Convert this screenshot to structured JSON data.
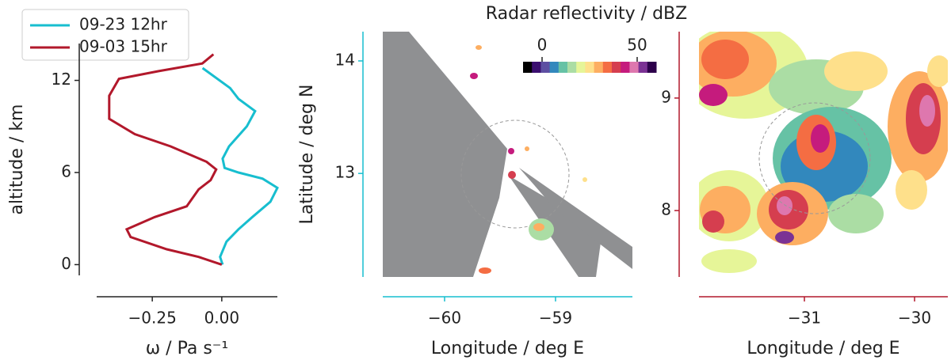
{
  "chart_data": [
    {
      "type": "line",
      "xlabel": "ω / Pa s⁻¹",
      "ylabel": "altitude / km",
      "xlim": [
        -0.45,
        0.2
      ],
      "xticks": [
        {
          "value": -0.25,
          "label": "−0.25"
        },
        {
          "value": 0,
          "label": "0.00"
        }
      ],
      "ylim": [
        -0.7,
        14.4
      ],
      "yticks": [
        0,
        6,
        12
      ],
      "legend": "upper left",
      "series": [
        {
          "name": "09-23 12hr",
          "color": "#17becf",
          "x": [
            -0.069,
            0.03,
            0.06,
            0.12,
            0.09,
            0.026,
            0.003,
            0.01,
            0.06,
            0.147,
            0.2,
            0.175,
            0.11,
            0.06,
            0.017,
            -0.006,
            0.003
          ],
          "y": [
            12.8,
            11.5,
            10.8,
            10,
            9,
            7.7,
            6.9,
            6.3,
            6,
            5.6,
            5,
            4.1,
            3.1,
            2.3,
            1.5,
            0.5,
            0
          ]
        },
        {
          "name": "09-03 15hr",
          "color": "#b2182b",
          "x": [
            -0.03,
            -0.07,
            -0.227,
            -0.37,
            -0.405,
            -0.405,
            -0.313,
            -0.184,
            -0.055,
            -0.02,
            -0.04,
            -0.083,
            -0.126,
            -0.241,
            -0.342,
            -0.328,
            -0.198,
            -0.083,
            0
          ],
          "y": [
            13.7,
            13.1,
            12.6,
            12.1,
            11,
            9.5,
            8.5,
            7.7,
            6.7,
            6.2,
            5.5,
            4.9,
            3.8,
            3.1,
            2.3,
            1.8,
            1,
            0.5,
            0
          ]
        }
      ]
    },
    {
      "type": "map",
      "xlabel": "Longitude / deg E",
      "ylabel": "Latitude / deg N",
      "axis_color": "#17becf",
      "xlim": [
        -60.557,
        -58.307
      ],
      "xticks": [
        {
          "value": -60,
          "label": "−60"
        },
        {
          "value": -59,
          "label": "−59"
        }
      ],
      "ylim": [
        12.08,
        14.26
      ],
      "yticks": [
        13,
        14
      ],
      "colorbar_label": "Radar reflectivity / dBZ",
      "clim": [
        -10,
        60
      ],
      "cticks": [
        0,
        50
      ],
      "colormap": [
        "#000000",
        "#3b0f70",
        "#5e4fa2",
        "#3288bd",
        "#66c2a5",
        "#abdda4",
        "#e6f598",
        "#fee08b",
        "#fdae61",
        "#f46d43",
        "#d53e4f",
        "#c51b7d",
        "#de77ae",
        "#7b3294",
        "#2d004b"
      ]
    },
    {
      "type": "map",
      "xlabel": "Longitude / deg E",
      "axis_color": "#b2182b",
      "xlim": [
        -31.957,
        -29.698
      ],
      "xticks": [
        {
          "value": -31,
          "label": "−31"
        },
        {
          "value": -30,
          "label": "−30"
        }
      ],
      "ylim": [
        7.41,
        9.59
      ],
      "yticks": [
        8,
        9
      ]
    }
  ]
}
